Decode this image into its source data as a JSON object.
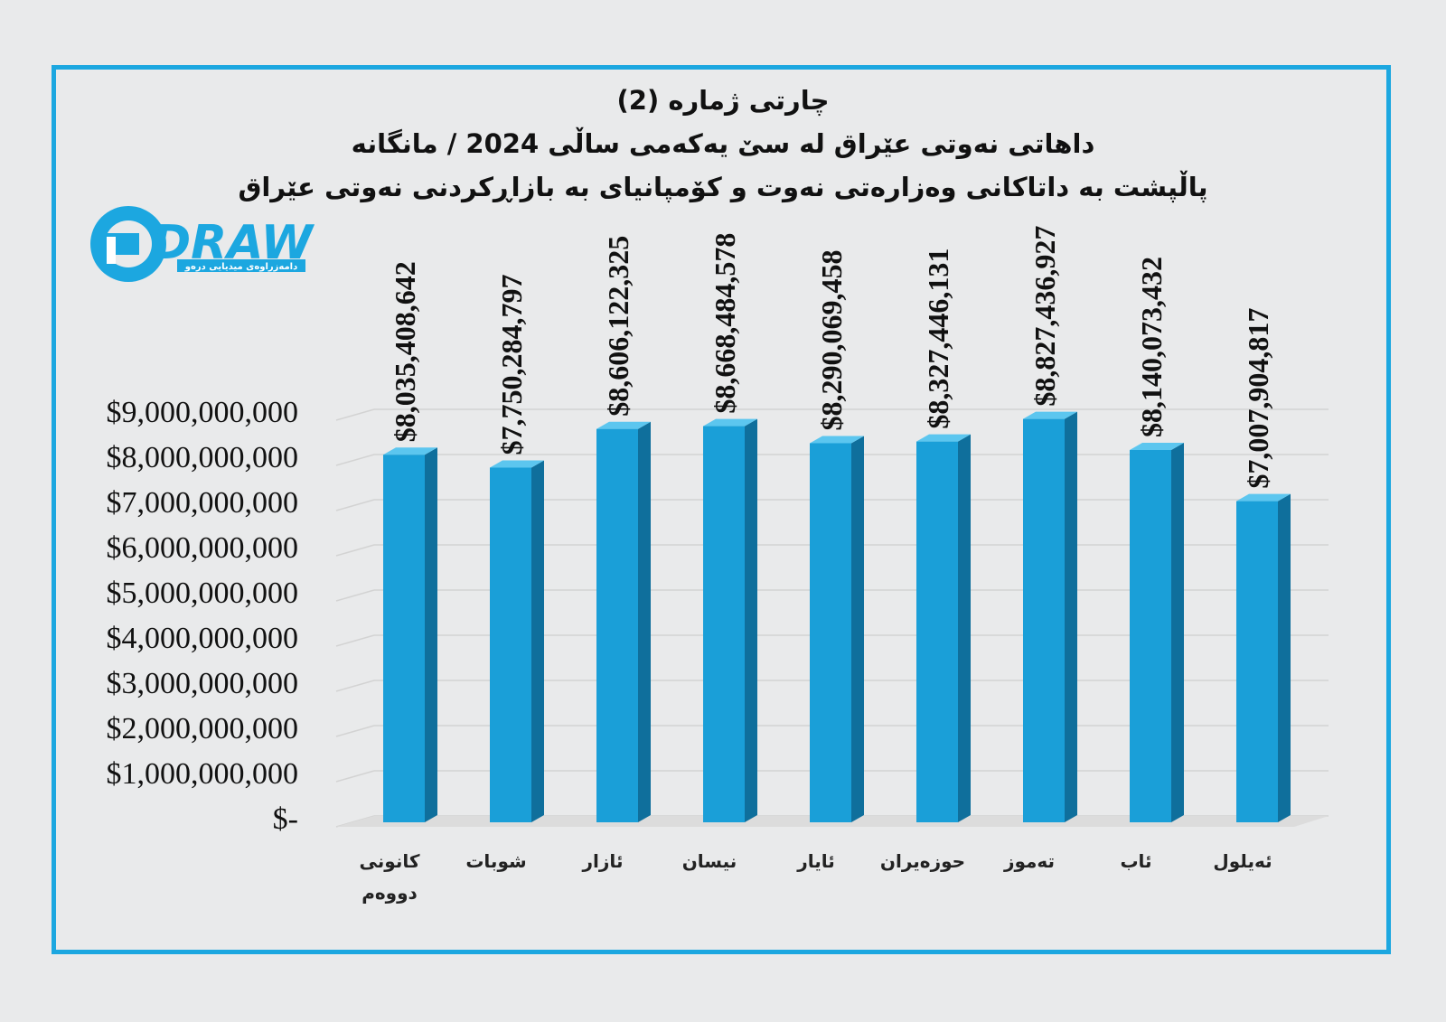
{
  "title": "چارتی ژمارە (2)",
  "subtitle": "داهاتی نەوتی عێراق لە سێ یەکەمی ساڵی 2024 / مانگانە",
  "note": "پاڵپشت بە داتاکانی وەزارەتی نەوت و کۆمپانیای بە بازاڕکردنی نەوتی عێراق",
  "logo": {
    "text": "DRAW",
    "tagline": "دامەزراوەی میدیایی درەو",
    "color": "#1ca7e0"
  },
  "colors": {
    "bar": "#1a9fd8",
    "bar_side": "#0f6f9c",
    "bar_top": "#5cc6ef",
    "frame": "#1ca7e0",
    "grid": "#d3d3d3"
  },
  "chart_data": {
    "type": "bar",
    "categories": [
      [
        "کانونی",
        "دووەم"
      ],
      [
        "شوبات"
      ],
      [
        "ئازار"
      ],
      [
        "نیسان"
      ],
      [
        "ئایار"
      ],
      [
        "حوزەیران"
      ],
      [
        "تەموز"
      ],
      [
        "ئاب"
      ],
      [
        "ئەیلول"
      ]
    ],
    "values": [
      8035408642,
      7750284797,
      8606122325,
      8668484578,
      8290069458,
      8327446131,
      8827436927,
      8140073432,
      7007904817
    ],
    "data_labels": [
      "$8,035,408,642",
      "$7,750,284,797",
      "$8,606,122,325",
      "$8,668,484,578",
      "$8,290,069,458",
      "$8,327,446,131",
      "$8,827,436,927",
      "$8,140,073,432",
      "$7,007,904,817"
    ],
    "y_ticks": [
      0,
      1000000000,
      2000000000,
      3000000000,
      4000000000,
      5000000000,
      6000000000,
      7000000000,
      8000000000,
      9000000000
    ],
    "y_tick_labels": [
      "$-",
      "$1,000,000,000",
      "$2,000,000,000",
      "$3,000,000,000",
      "$4,000,000,000",
      "$5,000,000,000",
      "$6,000,000,000",
      "$7,000,000,000",
      "$8,000,000,000",
      "$9,000,000,000"
    ],
    "ylim": [
      0,
      9000000000
    ],
    "grid": true,
    "legend": "none",
    "style": "3d-column"
  }
}
